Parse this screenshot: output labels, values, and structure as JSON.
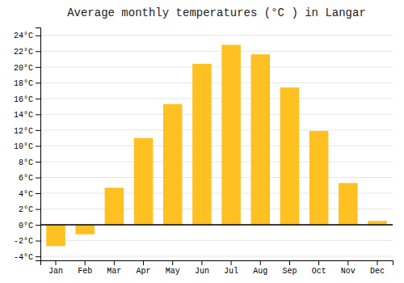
{
  "chart_data": {
    "type": "bar",
    "title": "Average monthly temperatures (°C ) in Langar",
    "categories": [
      "Jan",
      "Feb",
      "Mar",
      "Apr",
      "May",
      "Jun",
      "Jul",
      "Aug",
      "Sep",
      "Oct",
      "Nov",
      "Dec"
    ],
    "values": [
      -2.7,
      -1.2,
      4.7,
      11.0,
      15.3,
      20.4,
      22.8,
      21.6,
      17.4,
      11.9,
      5.3,
      0.5
    ],
    "color": "#FFC022",
    "ylim": [
      -4.5,
      25
    ],
    "yticks": [
      {
        "value": -4,
        "label": "-4°C"
      },
      {
        "value": -2,
        "label": "-2°C"
      },
      {
        "value": 0,
        "label": "0°C"
      },
      {
        "value": 2,
        "label": "2°C"
      },
      {
        "value": 4,
        "label": "4°C"
      },
      {
        "value": 6,
        "label": "6°C"
      },
      {
        "value": 8,
        "label": "8°C"
      },
      {
        "value": 10,
        "label": "10°C"
      },
      {
        "value": 12,
        "label": "12°C"
      },
      {
        "value": 14,
        "label": "14°C"
      },
      {
        "value": 16,
        "label": "16°C"
      },
      {
        "value": 18,
        "label": "18°C"
      },
      {
        "value": 20,
        "label": "20°C"
      },
      {
        "value": 22,
        "label": "22°C"
      },
      {
        "value": 24,
        "label": "24°C"
      }
    ],
    "grid": true
  }
}
